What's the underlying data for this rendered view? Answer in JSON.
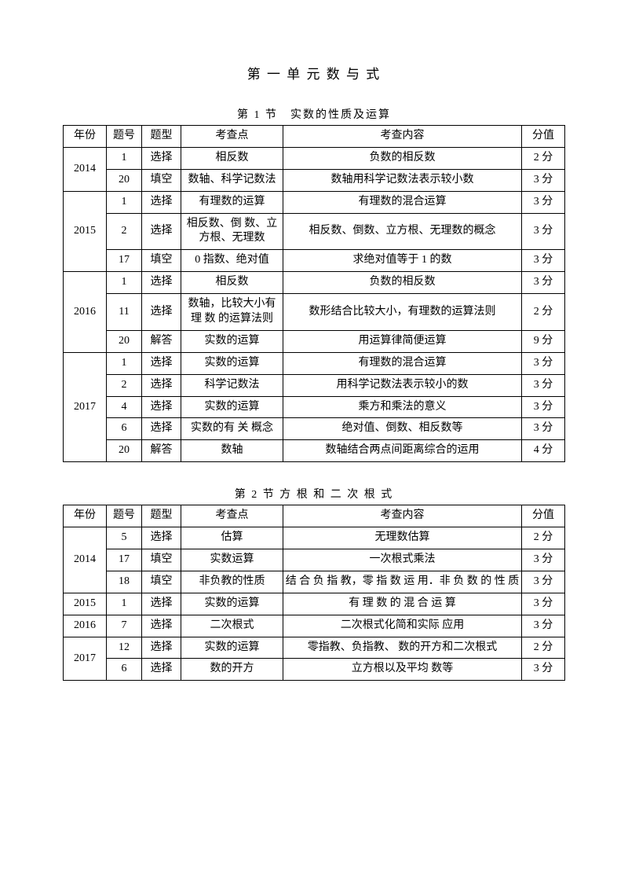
{
  "main_title": "第 一 单 元 数 与 式",
  "section1_title": "第 1 节　实数的性质及运算",
  "section2_title": "第  2  节 方 根 和 二 次 根 式",
  "columns": [
    "年份",
    "题号",
    "题型",
    "考查点",
    "考查内容",
    "分值"
  ],
  "table1": {
    "groups": [
      {
        "year": "2014",
        "rows": [
          {
            "num": "1",
            "type": "选择",
            "point": "相反数",
            "content": "负数的相反数",
            "score": "2 分"
          },
          {
            "num": "20",
            "type": "填空",
            "point": "数轴、科学记数法",
            "content": "数轴用科学记数法表示较小数",
            "score": "3 分"
          }
        ]
      },
      {
        "year": "2015",
        "rows": [
          {
            "num": "1",
            "type": "选择",
            "point": "有理数的运算",
            "content": "有理数的混合运算",
            "score": "3 分"
          },
          {
            "num": "2",
            "type": "选择",
            "point": "相反数、倒 数、立方根、无理数",
            "content": "相反数、倒数、立方根、无理数的概念",
            "score": "3 分"
          },
          {
            "num": "17",
            "type": "填空",
            "point": "0 指数、绝对值",
            "content": "求绝对值等于 1 的数",
            "score": "3 分"
          }
        ]
      },
      {
        "year": "2016",
        "rows": [
          {
            "num": "1",
            "type": "选择",
            "point": "相反数",
            "content": "负数的相反数",
            "score": "3 分"
          },
          {
            "num": "11",
            "type": "选择",
            "point": "数轴，比较大小有理 数 的运算法则",
            "content": "数形结合比较大小，有理数的运算法则",
            "score": "2 分"
          },
          {
            "num": "20",
            "type": "解答",
            "point": "实数的运算",
            "content": "用运算律简便运算",
            "score": "9 分"
          }
        ]
      },
      {
        "year": "2017",
        "rows": [
          {
            "num": "1",
            "type": "选择",
            "point": "实数的运算",
            "content": "有理数的混合运算",
            "score": "3 分"
          },
          {
            "num": "2",
            "type": "选择",
            "point": "科学记数法",
            "content": "用科学记数法表示较小的数",
            "score": "3 分"
          },
          {
            "num": "4",
            "type": "选择",
            "point": "实数的运算",
            "content": "乘方和乘法的意义",
            "score": "3 分"
          },
          {
            "num": "6",
            "type": "选择",
            "point": "实数的有 关 概念",
            "content": "绝对值、倒数、相反数等",
            "score": "3 分"
          },
          {
            "num": "20",
            "type": "解答",
            "point": "数轴",
            "content": "数轴结合两点间距离综合的运用",
            "score": "4 分"
          }
        ]
      }
    ]
  },
  "table2": {
    "groups": [
      {
        "year": "2014",
        "rows": [
          {
            "num": "5",
            "type": "选择",
            "point": "估算",
            "content": "无理数估算",
            "score": "2 分"
          },
          {
            "num": "17",
            "type": "填空",
            "point": "实数运算",
            "content": "一次根式乘法",
            "score": "3 分"
          },
          {
            "num": "18",
            "type": "填空",
            "point": "非负教的性质",
            "content": "结 合 负 指 教，零 指 数 运 用．非 负 数 的 性 质",
            "score": "3 分"
          }
        ]
      },
      {
        "year": "2015",
        "rows": [
          {
            "num": "1",
            "type": "选择",
            "point": "实数的运算",
            "content": "有 理 数 的 混 合 运 算",
            "score": "3 分"
          }
        ]
      },
      {
        "year": "2016",
        "rows": [
          {
            "num": "7",
            "type": "选择",
            "point": "二次根式",
            "content": "二次根式化简和实际 应用",
            "score": "3 分"
          }
        ]
      },
      {
        "year": "2017",
        "rows": [
          {
            "num": "12",
            "type": "选择",
            "point": "实数的运算",
            "content": "零指教、负指教、 数的开方和二次根式",
            "score": "2 分"
          },
          {
            "num": "6",
            "type": "选择",
            "point": "数的开方",
            "content": "立方根以及平均 数等",
            "score": "3 分"
          }
        ]
      }
    ]
  }
}
